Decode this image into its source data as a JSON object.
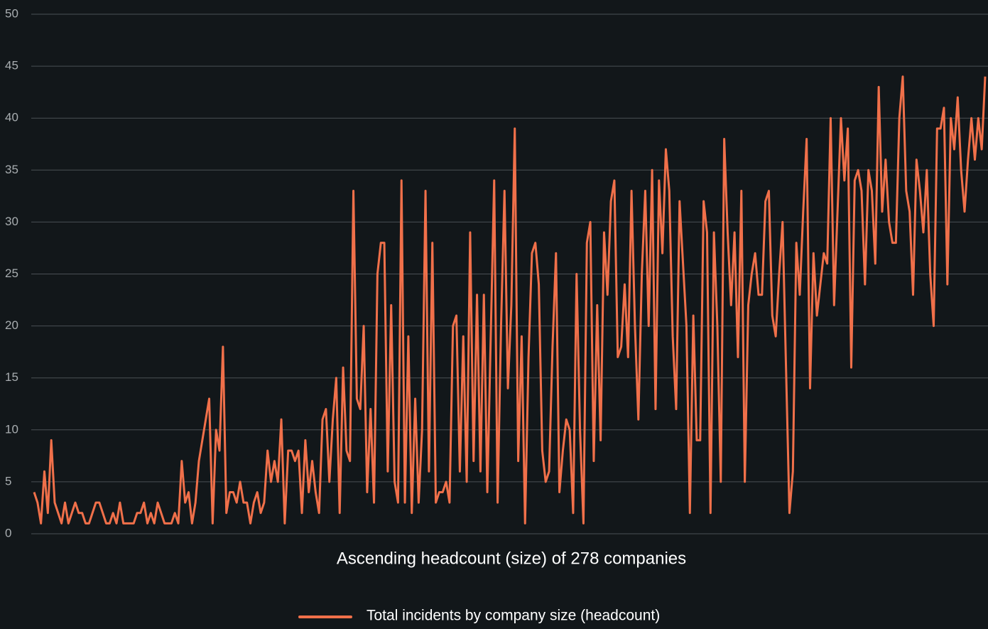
{
  "chart_data": {
    "type": "line",
    "xlabel": "Ascending headcount (size) of 278 companies",
    "ylim": [
      0,
      50
    ],
    "yticks": [
      0,
      5,
      10,
      15,
      20,
      25,
      30,
      35,
      40,
      45,
      50
    ],
    "grid": true,
    "legend": "bottom",
    "series": [
      {
        "name": "Total incidents by company size (headcount)",
        "color": "#f0704a",
        "values": [
          4,
          3,
          1,
          6,
          2,
          9,
          3,
          2,
          1,
          3,
          1,
          2,
          3,
          2,
          2,
          1,
          1,
          2,
          3,
          3,
          2,
          1,
          1,
          2,
          1,
          3,
          1,
          1,
          1,
          1,
          2,
          2,
          3,
          1,
          2,
          1,
          3,
          2,
          1,
          1,
          1,
          2,
          1,
          7,
          3,
          4,
          1,
          3,
          7,
          9,
          11,
          13,
          1,
          10,
          8,
          18,
          2,
          4,
          4,
          3,
          5,
          3,
          3,
          1,
          3,
          4,
          2,
          3,
          8,
          5,
          7,
          5,
          11,
          1,
          8,
          8,
          7,
          8,
          2,
          9,
          4,
          7,
          4,
          2,
          11,
          12,
          5,
          11,
          15,
          2,
          16,
          8,
          7,
          33,
          13,
          12,
          20,
          4,
          12,
          3,
          25,
          28,
          28,
          6,
          22,
          5,
          3,
          34,
          3,
          19,
          2,
          13,
          3,
          10,
          33,
          6,
          28,
          3,
          4,
          4,
          5,
          3,
          20,
          21,
          6,
          19,
          5,
          29,
          7,
          23,
          6,
          23,
          4,
          19,
          34,
          3,
          20,
          33,
          14,
          22,
          39,
          7,
          19,
          1,
          17,
          27,
          28,
          24,
          8,
          5,
          6,
          18,
          27,
          4,
          8,
          11,
          10,
          2,
          25,
          10,
          1,
          28,
          30,
          7,
          22,
          9,
          29,
          23,
          32,
          34,
          17,
          18,
          24,
          17,
          33,
          20,
          11,
          25,
          33,
          20,
          35,
          12,
          34,
          27,
          37,
          33,
          19,
          12,
          32,
          26,
          20,
          2,
          21,
          9,
          9,
          32,
          29,
          2,
          29,
          20,
          5,
          38,
          29,
          22,
          29,
          17,
          33,
          5,
          22,
          25,
          27,
          23,
          23,
          32,
          33,
          21,
          19,
          25,
          30,
          16,
          2,
          6,
          28,
          23,
          31,
          38,
          14,
          27,
          21,
          24,
          27,
          26,
          40,
          22,
          31,
          40,
          34,
          39,
          16,
          34,
          35,
          33,
          24,
          35,
          33,
          26,
          43,
          31,
          36,
          30,
          28,
          28,
          40,
          44,
          33,
          31,
          23,
          36,
          33,
          29,
          35,
          25,
          20,
          39,
          39,
          41,
          24,
          40,
          37,
          42,
          35,
          31,
          36,
          40,
          36,
          40,
          37,
          44
        ]
      }
    ]
  }
}
